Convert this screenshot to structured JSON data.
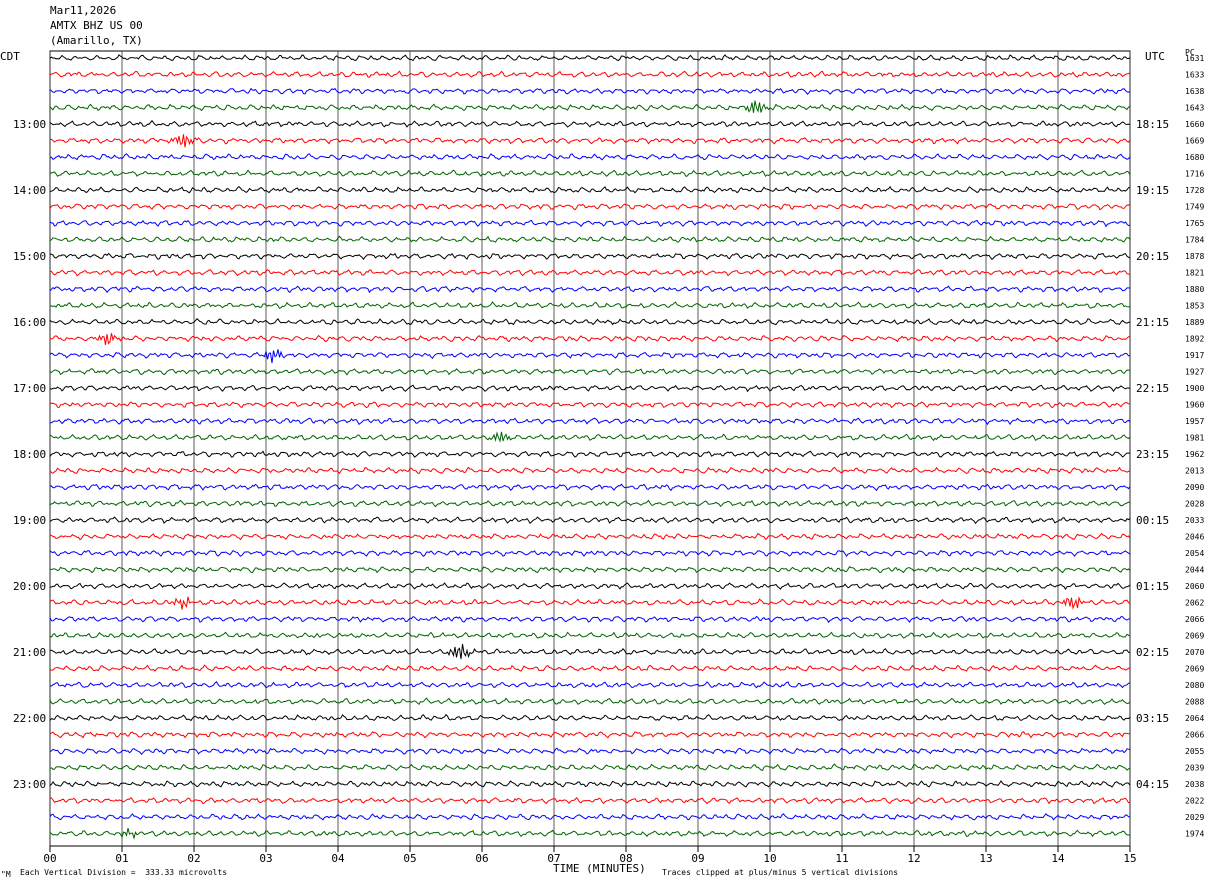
{
  "header": {
    "date": "Mar11,2026",
    "station": "AMTX BHZ US 00",
    "location": "(Amarillo, TX)"
  },
  "left_tz": "CDT",
  "right_tz": "UTC",
  "right_col_header": "PC",
  "footer": {
    "scale_note": "Each Vertical Division =  333.33 microvolts",
    "clip_note": "Traces clipped at plus/minus 5 vertical divisions",
    "corner_mark": "\"M"
  },
  "colors": {
    "trace_cycle": [
      "#000000",
      "#ff0000",
      "#0000ff",
      "#006400"
    ],
    "grid": "#000000"
  },
  "chart_data": {
    "type": "line",
    "title": "",
    "xlabel": "TIME (MINUTES)",
    "ylabel": "",
    "xlim": [
      0,
      15
    ],
    "x_ticks": [
      "00",
      "01",
      "02",
      "03",
      "04",
      "05",
      "06",
      "07",
      "08",
      "09",
      "10",
      "11",
      "12",
      "13",
      "14",
      "15"
    ],
    "grid": true,
    "rows_per_hour": 4,
    "minutes_per_row": 15,
    "left_hour_labels": [
      "13:00",
      "14:00",
      "15:00",
      "16:00",
      "17:00",
      "18:00",
      "19:00",
      "20:00",
      "21:00",
      "22:00",
      "23:00"
    ],
    "right_hour_labels": [
      "18:15",
      "19:15",
      "20:15",
      "21:15",
      "22:15",
      "23:15",
      "00:15",
      "01:15",
      "02:15",
      "03:15",
      "04:15"
    ],
    "hour_label_first_row": 4,
    "row_counts": [
      "1631",
      "1633",
      "1638",
      "1643",
      "1660",
      "1669",
      "1680",
      "1716",
      "1728",
      "1749",
      "1765",
      "1784",
      "1878",
      "1821",
      "1880",
      "1853",
      "1889",
      "1892",
      "1917",
      "1927",
      "1900",
      "1960",
      "1957",
      "1981",
      "1962",
      "2013",
      "2090",
      "2028",
      "2033",
      "2046",
      "2054",
      "2044",
      "2060",
      "2062",
      "2066",
      "2069",
      "2070",
      "2069",
      "2080",
      "2088",
      "2064",
      "2066",
      "2055",
      "2039",
      "2038",
      "2022",
      "2029",
      "1974"
    ],
    "events": [
      {
        "row": 3,
        "minute": 9.8,
        "amplitude": 2.2
      },
      {
        "row": 5,
        "minute": 1.85,
        "amplitude": 2.0
      },
      {
        "row": 17,
        "minute": 0.8,
        "amplitude": 2.0
      },
      {
        "row": 18,
        "minute": 3.1,
        "amplitude": 2.0
      },
      {
        "row": 23,
        "minute": 6.25,
        "amplitude": 1.6
      },
      {
        "row": 33,
        "minute": 1.85,
        "amplitude": 1.6
      },
      {
        "row": 33,
        "minute": 14.2,
        "amplitude": 2.0
      },
      {
        "row": 36,
        "minute": 5.7,
        "amplitude": 2.6
      },
      {
        "row": 47,
        "minute": 1.1,
        "amplitude": 1.2
      }
    ]
  }
}
